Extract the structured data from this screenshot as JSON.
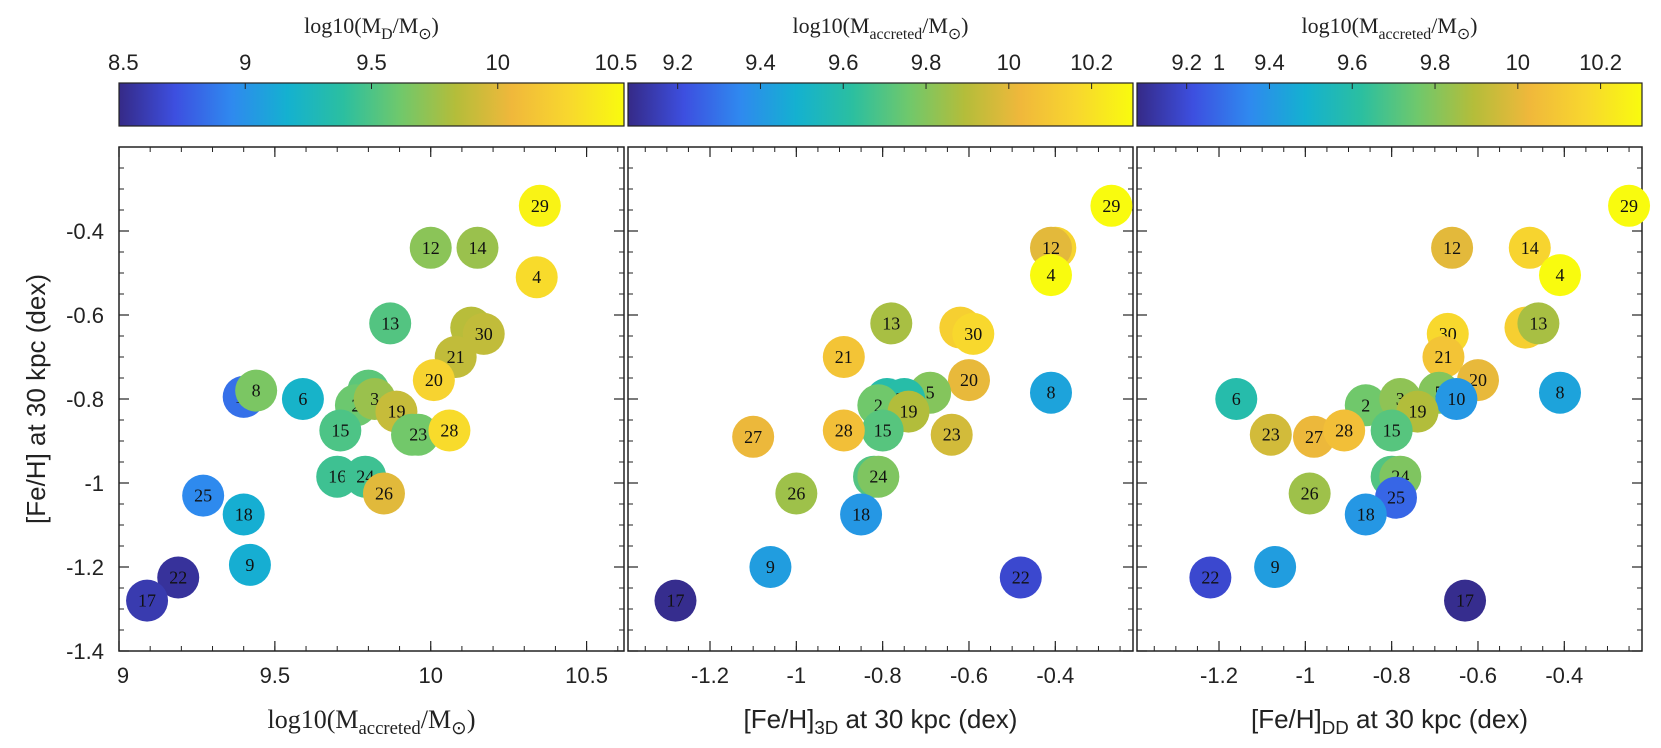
{
  "colormap": [
    "#352a87",
    "#3d4fe0",
    "#2f89ef",
    "#14b1d0",
    "#2bbfa0",
    "#6fc86c",
    "#b4bd3a",
    "#f0b83b",
    "#f8d72e",
    "#f9fb0e"
  ],
  "colors": {
    "axis": "#222222",
    "background": "#ffffff",
    "label_text": "#111111"
  },
  "chart_data": [
    {
      "type": "scatter",
      "title": "",
      "xlabel_main": "log10(M",
      "xlabel_sub": "accreted",
      "xlabel_tail": "/M",
      "xlabel_end": ")",
      "ylabel": "[Fe/H] at 30 kpc (dex)",
      "xlim": [
        9.0,
        10.62
      ],
      "ylim": [
        -1.4,
        -0.2
      ],
      "xticks": [
        9,
        9.5,
        10,
        10.5
      ],
      "xtick_labels": [
        "9",
        "9.5",
        "10",
        "10.5"
      ],
      "yticks": [
        -1.4,
        -1.2,
        -1,
        -0.8,
        -0.6,
        -0.4
      ],
      "ytick_labels": [
        "-1.4",
        "-1.2",
        "-1",
        "-0.8",
        "-0.6",
        "-0.4"
      ],
      "colorbar": {
        "label_main": "log10(M",
        "label_sub": "D",
        "label_tail": "/M",
        "label_end": ")",
        "range": [
          8.5,
          10.5
        ],
        "ticks": [
          8.5,
          9,
          9.5,
          10,
          10.5
        ],
        "tick_labels": [
          "8.5",
          "9",
          "9.5",
          "10",
          "10.5"
        ]
      },
      "points": [
        {
          "id": "29",
          "x": 10.35,
          "y": -0.34,
          "c": 10.45
        },
        {
          "id": "4",
          "x": 10.34,
          "y": -0.51,
          "c": 10.3
        },
        {
          "id": "12",
          "x": 10.0,
          "y": -0.44,
          "c": 9.7
        },
        {
          "id": "14",
          "x": 10.15,
          "y": -0.44,
          "c": 9.75
        },
        {
          "id": "13",
          "x": 9.87,
          "y": -0.62,
          "c": 9.52
        },
        {
          "id": "7",
          "x": 10.13,
          "y": -0.63,
          "c": 9.85
        },
        {
          "id": "30",
          "x": 10.17,
          "y": -0.645,
          "c": 9.88
        },
        {
          "id": "21",
          "x": 10.08,
          "y": -0.7,
          "c": 9.88
        },
        {
          "id": "20",
          "x": 10.01,
          "y": -0.755,
          "c": 10.25
        },
        {
          "id": "10",
          "x": 9.4,
          "y": -0.795,
          "c": 8.85
        },
        {
          "id": "8",
          "x": 9.44,
          "y": -0.78,
          "c": 9.65
        },
        {
          "id": "6",
          "x": 9.59,
          "y": -0.8,
          "c": 9.2
        },
        {
          "id": "5",
          "x": 9.8,
          "y": -0.78,
          "c": 9.55
        },
        {
          "id": "2",
          "x": 9.76,
          "y": -0.815,
          "c": 9.6
        },
        {
          "id": "3",
          "x": 9.82,
          "y": -0.8,
          "c": 9.75
        },
        {
          "id": "19",
          "x": 9.89,
          "y": -0.83,
          "c": 9.9
        },
        {
          "id": "15",
          "x": 9.71,
          "y": -0.875,
          "c": 9.5
        },
        {
          "id": "22b",
          "x": 9.94,
          "y": -0.885,
          "c": 9.62
        },
        {
          "id": "23",
          "x": 9.96,
          "y": -0.885,
          "c": 9.62
        },
        {
          "id": "28",
          "x": 10.06,
          "y": -0.875,
          "c": 10.3
        },
        {
          "id": "16",
          "x": 9.7,
          "y": -0.985,
          "c": 9.45
        },
        {
          "id": "24",
          "x": 9.79,
          "y": -0.985,
          "c": 9.45
        },
        {
          "id": "26",
          "x": 9.85,
          "y": -1.025,
          "c": 10.0
        },
        {
          "id": "25",
          "x": 9.27,
          "y": -1.03,
          "c": 8.95
        },
        {
          "id": "18",
          "x": 9.4,
          "y": -1.075,
          "c": 9.15
        },
        {
          "id": "9",
          "x": 9.42,
          "y": -1.195,
          "c": 9.15
        },
        {
          "id": "22",
          "x": 9.19,
          "y": -1.225,
          "c": 8.55
        },
        {
          "id": "17",
          "x": 9.09,
          "y": -1.28,
          "c": 8.6
        }
      ]
    },
    {
      "type": "scatter",
      "title": "",
      "xlabel_main": "[Fe/H]",
      "xlabel_sub": "3D",
      "xlabel_tail": " at 30 kpc (dex)",
      "xlim": [
        -1.39,
        -0.22
      ],
      "ylim": [
        -1.4,
        -0.2
      ],
      "xticks": [
        -1.2,
        -1,
        -0.8,
        -0.6,
        -0.4
      ],
      "xtick_labels": [
        "-1.2",
        "-1",
        "-0.8",
        "-0.6",
        "-0.4"
      ],
      "yticks": [
        -1.4,
        -1.2,
        -1,
        -0.8,
        -0.6,
        -0.4
      ],
      "colorbar": {
        "label_main": "log10(M",
        "label_sub": "accreted",
        "label_tail": "/M",
        "label_end": ")",
        "range": [
          9.08,
          10.3
        ],
        "ticks": [
          9.2,
          9.4,
          9.6,
          9.8,
          10,
          10.2
        ],
        "tick_labels": [
          "9.2",
          "9.4",
          "9.6",
          "9.8",
          "10",
          "10.2"
        ]
      },
      "points": [
        {
          "id": "29",
          "x": -0.27,
          "y": -0.34,
          "c": 10.35
        },
        {
          "id": "14",
          "x": -0.4,
          "y": -0.44,
          "c": 10.15
        },
        {
          "id": "12",
          "x": -0.41,
          "y": -0.44,
          "c": 10.0
        },
        {
          "id": "4",
          "x": -0.41,
          "y": -0.505,
          "c": 10.34
        },
        {
          "id": "13",
          "x": -0.78,
          "y": -0.62,
          "c": 9.87
        },
        {
          "id": "7",
          "x": -0.62,
          "y": -0.63,
          "c": 10.13
        },
        {
          "id": "30",
          "x": -0.59,
          "y": -0.645,
          "c": 10.17
        },
        {
          "id": "21",
          "x": -0.89,
          "y": -0.7,
          "c": 10.08
        },
        {
          "id": "20",
          "x": -0.6,
          "y": -0.755,
          "c": 10.01
        },
        {
          "id": "8",
          "x": -0.41,
          "y": -0.785,
          "c": 9.44
        },
        {
          "id": "5",
          "x": -0.69,
          "y": -0.785,
          "c": 9.8
        },
        {
          "id": "6",
          "x": -0.79,
          "y": -0.8,
          "c": 9.59
        },
        {
          "id": "30b",
          "x": -0.75,
          "y": -0.8,
          "c": 9.6
        },
        {
          "id": "2",
          "x": -0.81,
          "y": -0.815,
          "c": 9.76
        },
        {
          "id": "19",
          "x": -0.74,
          "y": -0.83,
          "c": 9.89
        },
        {
          "id": "15",
          "x": -0.8,
          "y": -0.875,
          "c": 9.71
        },
        {
          "id": "27",
          "x": -1.1,
          "y": -0.89,
          "c": 10.02
        },
        {
          "id": "28",
          "x": -0.89,
          "y": -0.875,
          "c": 10.06
        },
        {
          "id": "23",
          "x": -0.64,
          "y": -0.885,
          "c": 9.96
        },
        {
          "id": "16",
          "x": -0.82,
          "y": -0.985,
          "c": 9.7
        },
        {
          "id": "24",
          "x": -0.81,
          "y": -0.985,
          "c": 9.79
        },
        {
          "id": "26",
          "x": -1.0,
          "y": -1.025,
          "c": 9.85
        },
        {
          "id": "18",
          "x": -0.85,
          "y": -1.075,
          "c": 9.4
        },
        {
          "id": "9",
          "x": -1.06,
          "y": -1.2,
          "c": 9.42
        },
        {
          "id": "22",
          "x": -0.48,
          "y": -1.225,
          "c": 9.19
        },
        {
          "id": "17",
          "x": -1.28,
          "y": -1.28,
          "c": 9.09
        }
      ]
    },
    {
      "type": "scatter",
      "title": "",
      "xlabel_main": "[Fe/H]",
      "xlabel_sub": "DD",
      "xlabel_tail": " at 30 kpc (dex)",
      "xlim": [
        -1.39,
        -0.22
      ],
      "ylim": [
        -1.4,
        -0.2
      ],
      "xticks": [
        -1.2,
        -1,
        -0.8,
        -0.6,
        -0.4
      ],
      "xtick_labels": [
        "-1.2",
        "-1",
        "-0.8",
        "-0.6",
        "-0.4"
      ],
      "yticks": [
        -1.4,
        -1.2,
        -1,
        -0.8,
        -0.6,
        -0.4
      ],
      "colorbar": {
        "label_main": "log10(M",
        "label_sub": "accreted",
        "label_tail": "/M",
        "label_end": ")",
        "range": [
          9.08,
          10.3
        ],
        "ticks": [
          9.2,
          9.4,
          9.6,
          9.8,
          10,
          10.2
        ],
        "tick_labels": [
          "9.2",
          "9.4",
          "9.6",
          "9.8",
          "10",
          "10.2"
        ],
        "stray_tick_label": "1"
      },
      "points": [
        {
          "id": "29",
          "x": -0.25,
          "y": -0.34,
          "c": 10.35
        },
        {
          "id": "12",
          "x": -0.66,
          "y": -0.44,
          "c": 10.0
        },
        {
          "id": "14",
          "x": -0.48,
          "y": -0.44,
          "c": 10.15
        },
        {
          "id": "4",
          "x": -0.41,
          "y": -0.505,
          "c": 10.34
        },
        {
          "id": "7",
          "x": -0.49,
          "y": -0.63,
          "c": 10.13
        },
        {
          "id": "13",
          "x": -0.46,
          "y": -0.62,
          "c": 9.87
        },
        {
          "id": "30",
          "x": -0.67,
          "y": -0.645,
          "c": 10.17
        },
        {
          "id": "21",
          "x": -0.68,
          "y": -0.7,
          "c": 10.08
        },
        {
          "id": "20",
          "x": -0.6,
          "y": -0.755,
          "c": 10.01
        },
        {
          "id": "8",
          "x": -0.41,
          "y": -0.785,
          "c": 9.44
        },
        {
          "id": "6",
          "x": -1.16,
          "y": -0.8,
          "c": 9.59
        },
        {
          "id": "5",
          "x": -0.69,
          "y": -0.785,
          "c": 9.8
        },
        {
          "id": "10",
          "x": -0.65,
          "y": -0.8,
          "c": 9.4
        },
        {
          "id": "2",
          "x": -0.86,
          "y": -0.815,
          "c": 9.76
        },
        {
          "id": "3",
          "x": -0.78,
          "y": -0.8,
          "c": 9.82
        },
        {
          "id": "19",
          "x": -0.74,
          "y": -0.83,
          "c": 9.89
        },
        {
          "id": "15",
          "x": -0.8,
          "y": -0.875,
          "c": 9.71
        },
        {
          "id": "23",
          "x": -1.08,
          "y": -0.885,
          "c": 9.96
        },
        {
          "id": "27",
          "x": -0.98,
          "y": -0.89,
          "c": 10.02
        },
        {
          "id": "28",
          "x": -0.91,
          "y": -0.875,
          "c": 10.06
        },
        {
          "id": "16",
          "x": -0.8,
          "y": -0.985,
          "c": 9.7
        },
        {
          "id": "24",
          "x": -0.78,
          "y": -0.985,
          "c": 9.79
        },
        {
          "id": "25",
          "x": -0.79,
          "y": -1.035,
          "c": 9.27
        },
        {
          "id": "26",
          "x": -0.99,
          "y": -1.025,
          "c": 9.85
        },
        {
          "id": "18",
          "x": -0.86,
          "y": -1.075,
          "c": 9.4
        },
        {
          "id": "9",
          "x": -1.07,
          "y": -1.2,
          "c": 9.42
        },
        {
          "id": "22",
          "x": -1.22,
          "y": -1.225,
          "c": 9.19
        },
        {
          "id": "17",
          "x": -0.63,
          "y": -1.28,
          "c": 9.09
        }
      ]
    }
  ]
}
